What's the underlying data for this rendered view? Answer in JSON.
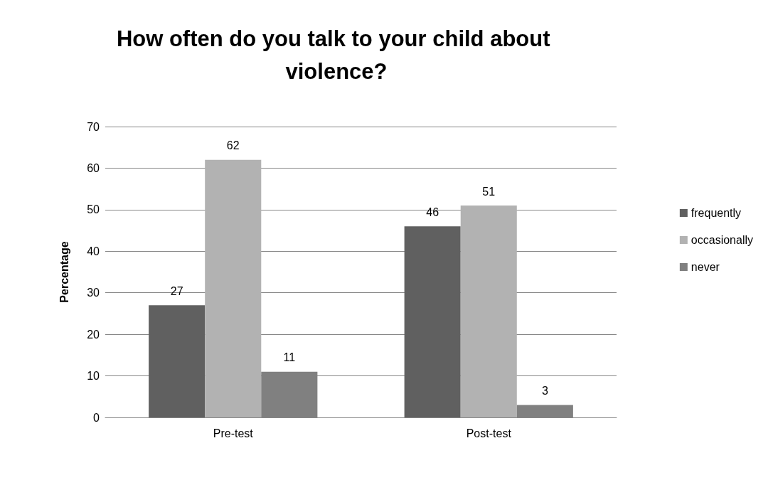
{
  "chart_data": {
    "type": "bar",
    "title": "How often do you talk to your child about violence?",
    "ylabel": "Percentage",
    "categories": [
      "Pre-test",
      "Post-test"
    ],
    "series": [
      {
        "name": "frequently",
        "color": "#606060",
        "values": [
          27,
          46
        ]
      },
      {
        "name": "occasionally",
        "color": "#b2b2b2",
        "values": [
          62,
          51
        ]
      },
      {
        "name": "never",
        "color": "#808080",
        "values": [
          11,
          3
        ]
      }
    ],
    "ylim": [
      0,
      70
    ],
    "yticks": [
      0,
      10,
      20,
      30,
      40,
      50,
      60,
      70
    ],
    "grid": "y",
    "legend": "right",
    "data_labels": true
  }
}
